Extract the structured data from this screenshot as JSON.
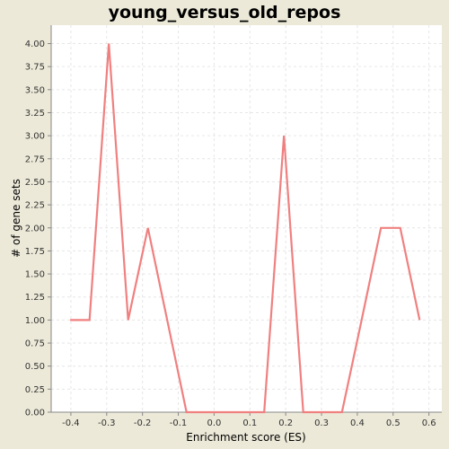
{
  "chart_data": {
    "type": "line",
    "title": "young_versus_old_repos",
    "xlabel": "Enrichment score (ES)",
    "ylabel": "# of gene sets",
    "xlim": [
      -0.455,
      0.636
    ],
    "ylim": [
      0,
      4.2
    ],
    "x_ticks": [
      "-0.4",
      "-0.3",
      "-0.2",
      "-0.1",
      "0.0",
      "0.1",
      "0.2",
      "0.3",
      "0.4",
      "0.5",
      "0.6"
    ],
    "x_tick_values": [
      -0.4,
      -0.3,
      -0.2,
      -0.1,
      0.0,
      0.1,
      0.2,
      0.3,
      0.4,
      0.5,
      0.6
    ],
    "y_ticks": [
      "0.00",
      "0.25",
      "0.50",
      "0.75",
      "1.00",
      "1.25",
      "1.50",
      "1.75",
      "2.00",
      "2.25",
      "2.50",
      "2.75",
      "3.00",
      "3.25",
      "3.50",
      "3.75",
      "4.00"
    ],
    "y_tick_values": [
      0,
      0.25,
      0.5,
      0.75,
      1.0,
      1.25,
      1.5,
      1.75,
      2.0,
      2.25,
      2.5,
      2.75,
      3.0,
      3.25,
      3.5,
      3.75,
      4.0
    ],
    "grid": true,
    "line_color": "#f08080",
    "plot_background": "#ffffff",
    "page_background": "#ece9d8",
    "series": [
      {
        "x": [
          -0.402,
          -0.348,
          -0.294,
          -0.24,
          -0.185,
          -0.131,
          -0.077,
          -0.022,
          0.032,
          0.086,
          0.14,
          0.195,
          0.249,
          0.303,
          0.357,
          0.412,
          0.466,
          0.52,
          0.574
        ],
        "y": [
          1,
          1,
          4,
          1,
          2,
          1,
          0,
          0,
          0,
          0,
          0,
          3,
          0,
          0,
          0,
          1,
          2,
          2,
          1
        ]
      }
    ]
  }
}
